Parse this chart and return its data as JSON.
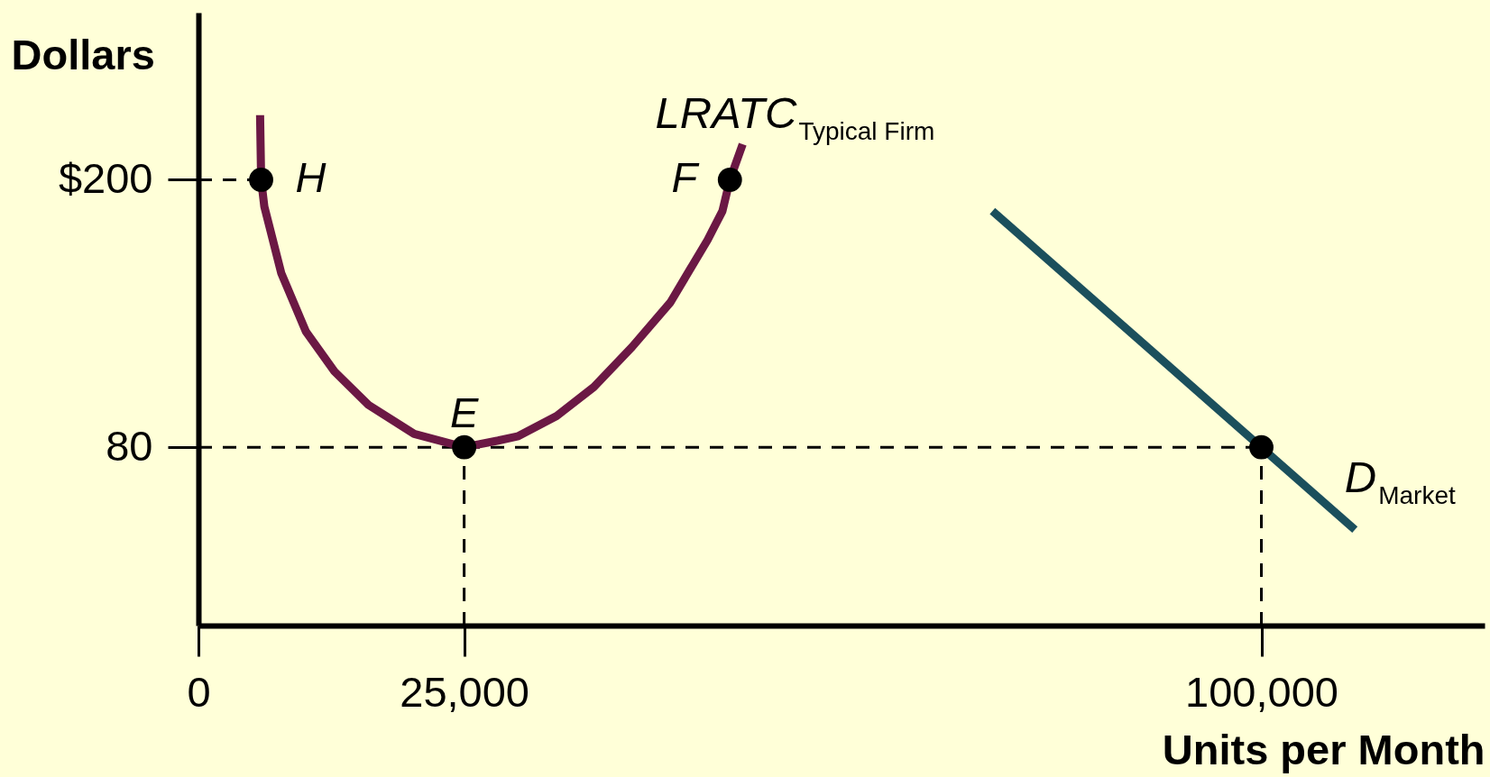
{
  "chart_data": {
    "type": "line",
    "xlabel": "Units per Month",
    "ylabel": "Dollars",
    "xlim": [
      0,
      121000
    ],
    "xticks": [
      0,
      {
        "value": 25000,
        "label": "25,000"
      },
      {
        "value": 100000,
        "label": "100,000"
      }
    ],
    "ylim": [
      0,
      275
    ],
    "yticks": [
      80,
      {
        "value": 200,
        "label": "$200"
      }
    ],
    "series": [
      {
        "type": "line",
        "color": "#000000",
        "line_style": "dashed",
        "x": [
          0,
          5900
        ],
        "values": [
          200,
          200
        ]
      },
      {
        "type": "line",
        "color": "#000000",
        "line_style": "dashed",
        "x": [
          0,
          100000
        ],
        "values": [
          80,
          80
        ]
      },
      {
        "type": "line",
        "color": "#000000",
        "line_style": "dashed",
        "x": [
          25000,
          25000
        ],
        "values": [
          0,
          80
        ]
      },
      {
        "type": "line",
        "color": "#000000",
        "line_style": "dashed",
        "x": [
          100000,
          100000
        ],
        "values": [
          0,
          80
        ]
      },
      {
        "name": "LRATC$_{Typical Firm}$",
        "color": "#6b1844",
        "line_style": "solid",
        "x": [
          5800,
          5900,
          6200,
          7800,
          10100,
          12800,
          16000,
          20300,
          25000,
          28200,
          30100,
          33700,
          37200,
          40800,
          44400,
          47900,
          49300,
          50000,
          51200
        ],
        "values": [
          229,
          200,
          188,
          158,
          132,
          114,
          99,
          86,
          80,
          83,
          85,
          94,
          107,
          125,
          145,
          173,
          186,
          200,
          216
        ]
      },
      {
        "name": "D$_{Market}$",
        "color": "#1b4f5c",
        "line_style": "solid",
        "x": [
          74700,
          108800
        ],
        "values": [
          186,
          43
        ]
      },
      {
        "type": "scatter",
        "color": "#000000",
        "marker": "circle",
        "x": [
          5900,
          25000,
          50000,
          100000
        ],
        "values": [
          200,
          80,
          200,
          80
        ]
      }
    ],
    "annotations": [
      {
        "text": "H",
        "x": 5900,
        "y": 200
      },
      {
        "text": "E",
        "x": 25000,
        "y": 80
      },
      {
        "text": "F",
        "x": 50000,
        "y": 200
      }
    ]
  }
}
